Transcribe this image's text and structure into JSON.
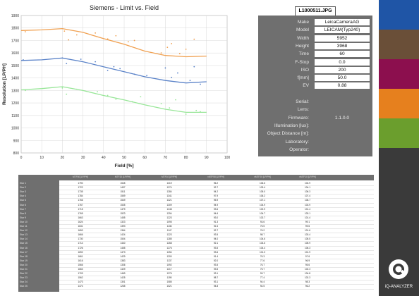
{
  "chart_data": {
    "type": "line",
    "title": "Siemens - Limit vs. Field",
    "xlabel": "Field [%]",
    "ylabel": "Resolution [LP/PH]",
    "xlim": [
      0,
      100
    ],
    "ylim": [
      800,
      1900
    ],
    "x_ticks": [
      "0",
      "10",
      "20",
      "30",
      "40",
      "50",
      "60",
      "70",
      "80",
      "90",
      "100"
    ],
    "y_ticks": [
      "800",
      "900",
      "1000",
      "1100",
      "1200",
      "1300",
      "1400",
      "1500",
      "1600",
      "1700",
      "1800",
      "1900"
    ],
    "grid": true,
    "series": [
      {
        "color": "#f0a050",
        "x": [
          0,
          10,
          20,
          30,
          40,
          50,
          60,
          70,
          80,
          90
        ],
        "values": [
          1780,
          1785,
          1795,
          1765,
          1715,
          1670,
          1615,
          1580,
          1570,
          1575
        ],
        "points": [
          [
            2,
            1770
          ],
          [
            21,
            1775
          ],
          [
            23,
            1705
          ],
          [
            27,
            1745
          ],
          [
            36,
            1760
          ],
          [
            42,
            1712
          ],
          [
            46,
            1738
          ],
          [
            52,
            1690
          ],
          [
            55,
            1700
          ],
          [
            68,
            1600
          ],
          [
            71,
            1645
          ],
          [
            73,
            1675
          ],
          [
            77,
            1595
          ],
          [
            80,
            1630
          ],
          [
            84,
            1710
          ]
        ]
      },
      {
        "color": "#5a82c8",
        "x": [
          0,
          10,
          20,
          30,
          40,
          50,
          60,
          70,
          80,
          90
        ],
        "values": [
          1540,
          1545,
          1560,
          1530,
          1490,
          1450,
          1410,
          1380,
          1360,
          1370
        ],
        "points": [
          [
            1,
            1545
          ],
          [
            20,
            1560
          ],
          [
            22,
            1515
          ],
          [
            29,
            1550
          ],
          [
            36,
            1530
          ],
          [
            42,
            1460
          ],
          [
            45,
            1490
          ],
          [
            48,
            1475
          ],
          [
            55,
            1430
          ],
          [
            61,
            1420
          ],
          [
            70,
            1480
          ],
          [
            73,
            1405
          ],
          [
            76,
            1440
          ],
          [
            82,
            1380
          ],
          [
            84,
            1490
          ],
          [
            87,
            1350
          ]
        ]
      },
      {
        "color": "#98e698",
        "x": [
          0,
          10,
          20,
          30,
          40,
          50,
          60,
          70,
          80,
          90
        ],
        "values": [
          1305,
          1315,
          1330,
          1300,
          1260,
          1225,
          1185,
          1150,
          1125,
          1125
        ],
        "points": [
          [
            2,
            1300
          ],
          [
            20,
            1320
          ],
          [
            22,
            1270
          ],
          [
            27,
            1310
          ],
          [
            37,
            1290
          ],
          [
            42,
            1260
          ],
          [
            46,
            1230
          ],
          [
            54,
            1210
          ],
          [
            58,
            1250
          ],
          [
            68,
            1195
          ],
          [
            72,
            1160
          ],
          [
            75,
            1225
          ],
          [
            80,
            1110
          ],
          [
            85,
            1140
          ],
          [
            87,
            1130
          ]
        ]
      }
    ]
  },
  "file_label": "L1000511.JPG",
  "info": [
    {
      "key": "Make",
      "value": "LeicaCameraAG",
      "filled": true
    },
    {
      "key": "Model",
      "value": "LEICAM(Typ240)",
      "filled": true
    },
    {
      "key": "Width",
      "value": "5952",
      "filled": true
    },
    {
      "key": "Height",
      "value": "3968",
      "filled": true
    },
    {
      "key": "Time",
      "value": "60",
      "filled": true
    },
    {
      "key": "F-Stop",
      "value": "0.0",
      "filled": true
    },
    {
      "key": "ISO",
      "value": "200",
      "filled": true
    },
    {
      "key": "f[mm]",
      "value": "50.0",
      "filled": true
    },
    {
      "key": "EV",
      "value": "0.88",
      "filled": true
    },
    {
      "key": "",
      "value": "",
      "filled": false
    },
    {
      "key": "Serial:",
      "value": "",
      "filled": false
    },
    {
      "key": "Lens:",
      "value": "",
      "filled": false
    },
    {
      "key": "Firmware:",
      "value": "1.1.0.0",
      "filled": false
    },
    {
      "key": "Illumination [lux]:",
      "value": "",
      "filled": false
    },
    {
      "key": "Object Distance [m]:",
      "value": "",
      "filled": false
    },
    {
      "key": "Laboratory:",
      "value": "",
      "filled": false
    },
    {
      "key": "Operator:",
      "value": "",
      "filled": false
    }
  ],
  "table": {
    "headers": [
      "",
      "MTF50 [LP/PH]",
      "MTF20 [LP/PH]",
      "MTF10 [LP/PH]",
      "vMTF50 [LP/PH]",
      "vMTF20 [LP/PH]",
      "vMTF10 [LP/PH]"
    ],
    "rows": [
      [
        "Star 1",
        "1790",
        "1545",
        "1319",
        "96.2",
        "106.6",
        "104.9"
      ],
      [
        "Star 2",
        "1722",
        "1497",
        "1274",
        "92.7",
        "103.4",
        "104.1"
      ],
      [
        "Star 3",
        "1735",
        "1511",
        "1284",
        "94.2",
        "105.0",
        "106.3"
      ],
      [
        "Star 4",
        "1784",
        "1559",
        "1341",
        "97.9",
        "106.2",
        "107.4"
      ],
      [
        "Star 5",
        "1766",
        "1549",
        "1321",
        "95.9",
        "107.1",
        "106.7"
      ],
      [
        "Star 6",
        "1767",
        "1535",
        "1309",
        "94.9",
        "104.9",
        "103.9"
      ],
      [
        "Star 7",
        "1715",
        "1479",
        "1248",
        "93.6",
        "102.9",
        "101.4"
      ],
      [
        "Star 8",
        "1765",
        "1523",
        "1294",
        "94.6",
        "104.7",
        "103.1"
      ],
      [
        "Star 9",
        "1663",
        "1455",
        "1223",
        "93.0",
        "102.7",
        "101.4"
      ],
      [
        "Star 10",
        "1624",
        "1323",
        "1095",
        "91.3",
        "93.6",
        "99.1"
      ],
      [
        "Star 11",
        "1631",
        "1393",
        "1136",
        "92.4",
        "75.5",
        "99.6"
      ],
      [
        "Star 12",
        "1653",
        "1364",
        "1147",
        "92.7",
        "76.2",
        "101.6"
      ],
      [
        "Star 13",
        "1666",
        "1424",
        "1223",
        "93.5",
        "98.7",
        "103.4"
      ],
      [
        "Star 14",
        "1730",
        "1504",
        "1285",
        "94.0",
        "104.6",
        "105.5"
      ],
      [
        "Star 15",
        "1714",
        "1440",
        "1268",
        "92.1",
        "104.6",
        "105.9"
      ],
      [
        "Star 16",
        "1726",
        "1455",
        "1276",
        "93.5",
        "104.4",
        "106.3"
      ],
      [
        "Star 17",
        "1692",
        "1473",
        "1254",
        "93.6",
        "101.3",
        "101.9"
      ],
      [
        "Star 18",
        "1661",
        "1429",
        "1200",
        "91.4",
        "76.3",
        "97.6"
      ],
      [
        "Star 19",
        "1616",
        "1383",
        "1137",
        "92.0",
        "77.6",
        "96.9"
      ],
      [
        "Star 20",
        "1566",
        "1336",
        "1092",
        "93.5",
        "76.7",
        "95.6"
      ],
      [
        "Star 21",
        "1663",
        "1429",
        "1217",
        "93.5",
        "75.7",
        "102.3"
      ],
      [
        "Star 22",
        "1709",
        "1469",
        "1276",
        "93.1",
        "93.7",
        "104.8"
      ],
      [
        "Star 23",
        "1562",
        "1425",
        "1195",
        "98.7",
        "77.4",
        "102.3"
      ],
      [
        "Star 24",
        "1473",
        "1301",
        "1085",
        "93.1",
        "94.4",
        "98.3"
      ],
      [
        "Star 25",
        "1474",
        "1265",
        "1021",
        "94.8",
        "94.5",
        "96.2"
      ]
    ]
  },
  "swatches": [
    "#1f55a6",
    "#6a4f38",
    "#8c0f4e",
    "#e6801e",
    "#6b9e2d",
    "#3a3a3a"
  ],
  "brand": {
    "name": "iQ-ANALYZER"
  }
}
